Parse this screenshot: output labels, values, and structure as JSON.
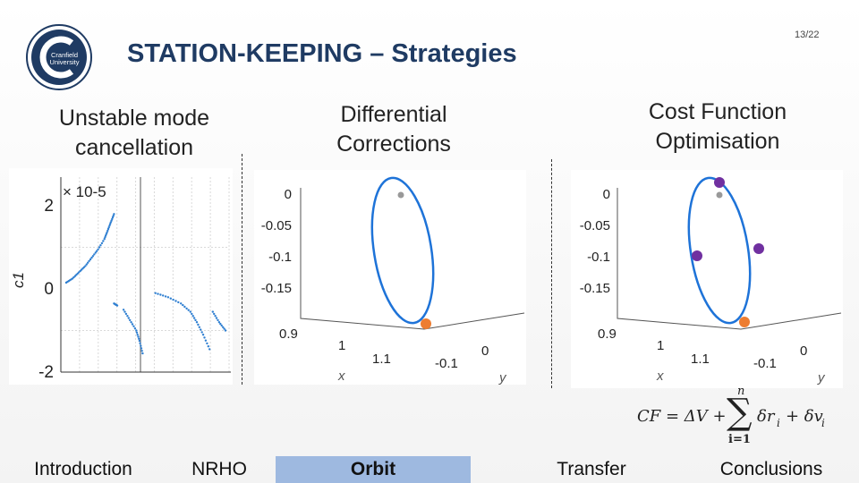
{
  "header": {
    "title": "STATION-KEEPING – Strategies",
    "page_number": "13/22",
    "logo": {
      "line1": "Cranfield",
      "line2": "University",
      "color": "#1f3b63"
    }
  },
  "columns": {
    "left": {
      "line1": "Unstable mode",
      "line2": "cancellation"
    },
    "middle": {
      "line1": "Differential",
      "line2": "Corrections"
    },
    "right": {
      "line1": "Cost Function",
      "line2": "Optimisation"
    }
  },
  "formula": {
    "lhs": "CF = ΔV +",
    "sum_top": "n",
    "sum_bottom": "i=1",
    "rhs": "δr",
    "rhs_sub": "i",
    "plus": "+ δv",
    "plus_sub": "i"
  },
  "nav": {
    "items": [
      {
        "label": "Introduction",
        "active": false
      },
      {
        "label": "NRHO",
        "active": false
      },
      {
        "label": "Orbit",
        "active": true
      },
      {
        "label": "Transfer",
        "active": false
      },
      {
        "label": "Conclusions",
        "active": false
      }
    ]
  },
  "chart_data": [
    {
      "type": "scatter",
      "title": "",
      "ylabel": "c1",
      "xlabel": "",
      "exponent": "× 10-5",
      "ylim": [
        -2,
        2
      ],
      "yticks": [
        "2",
        "0",
        "-2"
      ],
      "grid": true,
      "color": "#2f7fd1",
      "segments": [
        {
          "x": [
            0.0,
            0.04,
            0.08,
            0.12,
            0.16,
            0.2,
            0.24,
            0.26,
            0.28,
            0.3
          ],
          "y": [
            0.15,
            0.25,
            0.4,
            0.55,
            0.75,
            0.95,
            1.2,
            1.4,
            1.6,
            1.8
          ]
        },
        {
          "x": [
            0.3,
            0.32
          ],
          "y": [
            -0.35,
            -0.4
          ]
        },
        {
          "x": [
            0.36,
            0.4,
            0.44,
            0.46,
            0.48
          ],
          "y": [
            -0.5,
            -0.75,
            -1.0,
            -1.25,
            -1.55
          ]
        },
        {
          "x": [
            0.56,
            0.64,
            0.72,
            0.78,
            0.82,
            0.86,
            0.9
          ],
          "y": [
            -0.1,
            -0.2,
            -0.35,
            -0.55,
            -0.8,
            -1.1,
            -1.45
          ]
        },
        {
          "x": [
            0.92,
            0.96,
            1.0
          ],
          "y": [
            -0.55,
            -0.8,
            -1.0
          ]
        }
      ]
    },
    {
      "type": "line",
      "title": "Differential Corrections orbit",
      "xlabel": "x",
      "ylabel": "y",
      "z_ticks": [
        "0",
        "-0.05",
        "-0.1",
        "-0.15"
      ],
      "x_ticks": [
        "0.9",
        "1",
        "1.1"
      ],
      "y_ticks": [
        "0",
        "-0.1"
      ],
      "orbit_color": "#1e73d8",
      "markers": [
        {
          "kind": "gray",
          "color": "#999999",
          "position": "top"
        },
        {
          "kind": "orange",
          "color": "#ed7d31",
          "position": "bottom"
        }
      ]
    },
    {
      "type": "line",
      "title": "Cost Function Optimisation orbit",
      "xlabel": "x",
      "ylabel": "y",
      "z_ticks": [
        "0",
        "-0.05",
        "-0.1",
        "-0.15"
      ],
      "x_ticks": [
        "0.9",
        "1",
        "1.1"
      ],
      "y_ticks": [
        "0",
        "-0.1"
      ],
      "orbit_color": "#1e73d8",
      "markers": [
        {
          "kind": "gray",
          "color": "#999999",
          "position": "top"
        },
        {
          "kind": "purple",
          "color": "#7030a0",
          "position": "top"
        },
        {
          "kind": "purple",
          "color": "#7030a0",
          "position": "left"
        },
        {
          "kind": "purple",
          "color": "#7030a0",
          "position": "right"
        },
        {
          "kind": "orange",
          "color": "#ed7d31",
          "position": "bottom"
        }
      ]
    }
  ]
}
